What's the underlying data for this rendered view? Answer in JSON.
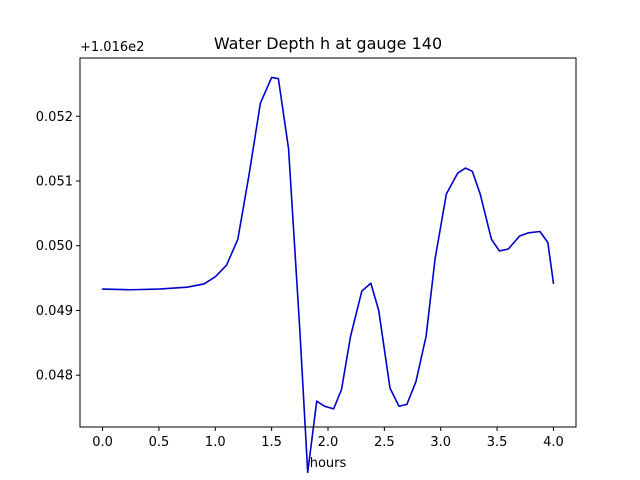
{
  "chart_data": {
    "type": "line",
    "title": "Water Depth h at gauge 140",
    "xlabel": "hours",
    "ylabel": "",
    "offset_label": "+1.016e2",
    "xlim": [
      -0.2,
      4.2
    ],
    "ylim": [
      0.0472,
      0.0529
    ],
    "xticks": [
      0.0,
      0.5,
      1.0,
      1.5,
      2.0,
      2.5,
      3.0,
      3.5,
      4.0
    ],
    "xtick_labels": [
      "0.0",
      "0.5",
      "1.0",
      "1.5",
      "2.0",
      "2.5",
      "3.0",
      "3.5",
      "4.0"
    ],
    "yticks": [
      0.048,
      0.049,
      0.05,
      0.051,
      0.052
    ],
    "ytick_labels": [
      "0.048",
      "0.049",
      "0.050",
      "0.051",
      "0.052"
    ],
    "grid": false,
    "series": [
      {
        "color": "#0000cc",
        "x": [
          0.0,
          0.25,
          0.5,
          0.75,
          0.9,
          1.0,
          1.1,
          1.2,
          1.3,
          1.4,
          1.5,
          1.56,
          1.65,
          1.75,
          1.82,
          1.9,
          1.97,
          2.05,
          2.12,
          2.2,
          2.3,
          2.38,
          2.45,
          2.55,
          2.63,
          2.7,
          2.78,
          2.87,
          2.95,
          3.05,
          3.15,
          3.22,
          3.28,
          3.35,
          3.45,
          3.52,
          3.6,
          3.7,
          3.78,
          3.88,
          3.95,
          4.0
        ],
        "y": [
          0.04933,
          0.04932,
          0.04933,
          0.04936,
          0.04941,
          0.04952,
          0.0497,
          0.0501,
          0.0511,
          0.0522,
          0.0526,
          0.05258,
          0.0515,
          0.0487,
          0.0465,
          0.0476,
          0.04752,
          0.04748,
          0.04778,
          0.0486,
          0.0493,
          0.04942,
          0.049,
          0.0478,
          0.04752,
          0.04755,
          0.0479,
          0.0486,
          0.0498,
          0.0508,
          0.05112,
          0.0512,
          0.05115,
          0.0508,
          0.0501,
          0.04992,
          0.04995,
          0.05015,
          0.0502,
          0.05022,
          0.05005,
          0.04942
        ]
      }
    ]
  }
}
